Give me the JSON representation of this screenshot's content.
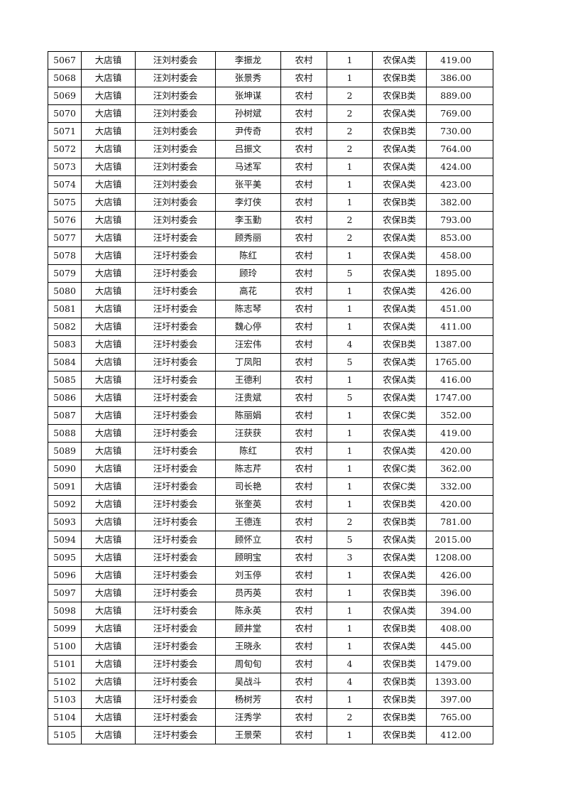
{
  "table": {
    "rows": [
      [
        "5067",
        "大店镇",
        "汪刘村委会",
        "李振龙",
        "农村",
        "1",
        "农保A类",
        "419.00"
      ],
      [
        "5068",
        "大店镇",
        "汪刘村委会",
        "张景秀",
        "农村",
        "1",
        "农保B类",
        "386.00"
      ],
      [
        "5069",
        "大店镇",
        "汪刘村委会",
        "张坤谋",
        "农村",
        "2",
        "农保B类",
        "889.00"
      ],
      [
        "5070",
        "大店镇",
        "汪刘村委会",
        "孙树斌",
        "农村",
        "2",
        "农保A类",
        "769.00"
      ],
      [
        "5071",
        "大店镇",
        "汪刘村委会",
        "尹传奇",
        "农村",
        "2",
        "农保B类",
        "730.00"
      ],
      [
        "5072",
        "大店镇",
        "汪刘村委会",
        "吕振文",
        "农村",
        "2",
        "农保A类",
        "764.00"
      ],
      [
        "5073",
        "大店镇",
        "汪刘村委会",
        "马述军",
        "农村",
        "1",
        "农保A类",
        "424.00"
      ],
      [
        "5074",
        "大店镇",
        "汪刘村委会",
        "张平美",
        "农村",
        "1",
        "农保A类",
        "423.00"
      ],
      [
        "5075",
        "大店镇",
        "汪刘村委会",
        "李灯侠",
        "农村",
        "1",
        "农保B类",
        "382.00"
      ],
      [
        "5076",
        "大店镇",
        "汪刘村委会",
        "李玉勤",
        "农村",
        "2",
        "农保B类",
        "793.00"
      ],
      [
        "5077",
        "大店镇",
        "汪圩村委会",
        "顾秀丽",
        "农村",
        "2",
        "农保A类",
        "853.00"
      ],
      [
        "5078",
        "大店镇",
        "汪圩村委会",
        "陈红",
        "农村",
        "1",
        "农保A类",
        "458.00"
      ],
      [
        "5079",
        "大店镇",
        "汪圩村委会",
        "顾玲",
        "农村",
        "5",
        "农保A类",
        "1895.00"
      ],
      [
        "5080",
        "大店镇",
        "汪圩村委会",
        "高花",
        "农村",
        "1",
        "农保A类",
        "426.00"
      ],
      [
        "5081",
        "大店镇",
        "汪圩村委会",
        "陈志琴",
        "农村",
        "1",
        "农保A类",
        "451.00"
      ],
      [
        "5082",
        "大店镇",
        "汪圩村委会",
        "魏心停",
        "农村",
        "1",
        "农保A类",
        "411.00"
      ],
      [
        "5083",
        "大店镇",
        "汪圩村委会",
        "汪宏伟",
        "农村",
        "4",
        "农保B类",
        "1387.00"
      ],
      [
        "5084",
        "大店镇",
        "汪圩村委会",
        "丁凤阳",
        "农村",
        "5",
        "农保A类",
        "1765.00"
      ],
      [
        "5085",
        "大店镇",
        "汪圩村委会",
        "王德利",
        "农村",
        "1",
        "农保A类",
        "416.00"
      ],
      [
        "5086",
        "大店镇",
        "汪圩村委会",
        "汪贵斌",
        "农村",
        "5",
        "农保A类",
        "1747.00"
      ],
      [
        "5087",
        "大店镇",
        "汪圩村委会",
        "陈丽娟",
        "农村",
        "1",
        "农保C类",
        "352.00"
      ],
      [
        "5088",
        "大店镇",
        "汪圩村委会",
        "汪获获",
        "农村",
        "1",
        "农保A类",
        "419.00"
      ],
      [
        "5089",
        "大店镇",
        "汪圩村委会",
        "陈红",
        "农村",
        "1",
        "农保A类",
        "420.00"
      ],
      [
        "5090",
        "大店镇",
        "汪圩村委会",
        "陈志芹",
        "农村",
        "1",
        "农保C类",
        "362.00"
      ],
      [
        "5091",
        "大店镇",
        "汪圩村委会",
        "司长艳",
        "农村",
        "1",
        "农保C类",
        "332.00"
      ],
      [
        "5092",
        "大店镇",
        "汪圩村委会",
        "张奎英",
        "农村",
        "1",
        "农保B类",
        "420.00"
      ],
      [
        "5093",
        "大店镇",
        "汪圩村委会",
        "王德连",
        "农村",
        "2",
        "农保B类",
        "781.00"
      ],
      [
        "5094",
        "大店镇",
        "汪圩村委会",
        "顾怀立",
        "农村",
        "5",
        "农保A类",
        "2015.00"
      ],
      [
        "5095",
        "大店镇",
        "汪圩村委会",
        "顾明宝",
        "农村",
        "3",
        "农保A类",
        "1208.00"
      ],
      [
        "5096",
        "大店镇",
        "汪圩村委会",
        "刘玉停",
        "农村",
        "1",
        "农保A类",
        "426.00"
      ],
      [
        "5097",
        "大店镇",
        "汪圩村委会",
        "员丙英",
        "农村",
        "1",
        "农保B类",
        "396.00"
      ],
      [
        "5098",
        "大店镇",
        "汪圩村委会",
        "陈永英",
        "农村",
        "1",
        "农保A类",
        "394.00"
      ],
      [
        "5099",
        "大店镇",
        "汪圩村委会",
        "顾井堂",
        "农村",
        "1",
        "农保B类",
        "408.00"
      ],
      [
        "5100",
        "大店镇",
        "汪圩村委会",
        "王晓永",
        "农村",
        "1",
        "农保A类",
        "445.00"
      ],
      [
        "5101",
        "大店镇",
        "汪圩村委会",
        "周旬旬",
        "农村",
        "4",
        "农保B类",
        "1479.00"
      ],
      [
        "5102",
        "大店镇",
        "汪圩村委会",
        "吴战斗",
        "农村",
        "4",
        "农保B类",
        "1393.00"
      ],
      [
        "5103",
        "大店镇",
        "汪圩村委会",
        "杨树芳",
        "农村",
        "1",
        "农保B类",
        "397.00"
      ],
      [
        "5104",
        "大店镇",
        "汪圩村委会",
        "汪秀学",
        "农村",
        "2",
        "农保B类",
        "765.00"
      ],
      [
        "5105",
        "大店镇",
        "汪圩村委会",
        "王景荣",
        "农村",
        "1",
        "农保B类",
        "412.00"
      ]
    ]
  }
}
